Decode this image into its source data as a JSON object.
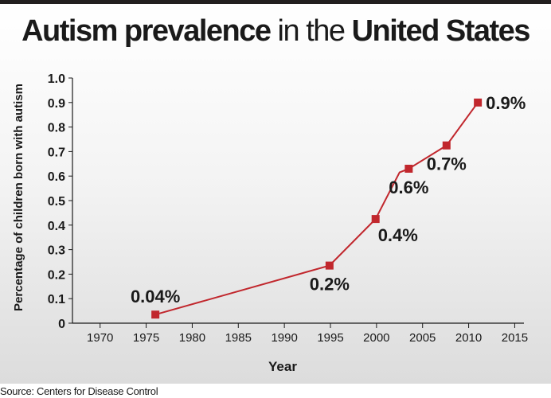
{
  "title": {
    "part1": "Autism prevalence",
    "part2": " in the ",
    "part3": "United States"
  },
  "source": "Source: Centers for Disease Control",
  "chart_data": {
    "type": "line",
    "title": "Autism prevalence in the United States",
    "xlabel": "Year",
    "ylabel": "Percentage of children born with autism",
    "xlim": [
      1967,
      2016
    ],
    "ylim": [
      0,
      1.0
    ],
    "x_ticks": [
      1970,
      1975,
      1980,
      1985,
      1990,
      1995,
      2000,
      2005,
      2010,
      2015
    ],
    "x_tick_labels": [
      "1970",
      "1975",
      "1980",
      "1985",
      "1990",
      "1995",
      "2000",
      "2005",
      "2010",
      "2015"
    ],
    "y_ticks": [
      0,
      0.1,
      0.2,
      0.3,
      0.4,
      0.5,
      0.6,
      0.7,
      0.8,
      0.9,
      1.0
    ],
    "y_tick_labels": [
      "0",
      "0.1",
      "0.2",
      "0.3",
      "0.4",
      "0.5",
      "0.6",
      "0.7",
      "0.8",
      "0.9",
      "1.0"
    ],
    "grid": false,
    "line_color": "#c1272d",
    "series": [
      {
        "x": [
          1976,
          1994.9,
          1999.9,
          2002.5,
          2003.5,
          2007.6,
          2011
        ],
        "y": [
          0.035,
          0.235,
          0.425,
          0.615,
          0.63,
          0.725,
          0.9
        ],
        "markers": [
          true,
          true,
          true,
          false,
          true,
          true,
          true
        ]
      }
    ],
    "data_labels": [
      {
        "text": "0.04%",
        "x": 1976,
        "y": 0.035,
        "position": "above"
      },
      {
        "text": "0.2%",
        "x": 1994.9,
        "y": 0.235,
        "position": "below"
      },
      {
        "text": "0.4%",
        "x": 1999.9,
        "y": 0.425,
        "position": "below-right"
      },
      {
        "text": "0.6%",
        "x": 2003.5,
        "y": 0.63,
        "position": "below"
      },
      {
        "text": "0.7%",
        "x": 2007.6,
        "y": 0.725,
        "position": "below"
      },
      {
        "text": "0.9%",
        "x": 2011,
        "y": 0.9,
        "position": "right"
      }
    ]
  }
}
